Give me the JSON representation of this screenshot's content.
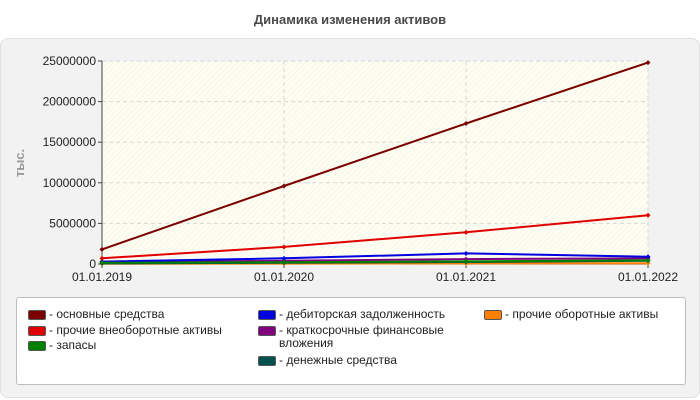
{
  "chart_data": {
    "type": "line",
    "title": "Динамика изменения активов",
    "ylabel": "тыс.",
    "xlabel": "",
    "categories": [
      "01.01.2019",
      "01.01.2020",
      "01.01.2021",
      "01.01.2022"
    ],
    "ylim": [
      0,
      25000000
    ],
    "yticks": [
      "0",
      "5000000",
      "10000000",
      "15000000",
      "20000000",
      "25000000"
    ],
    "grid": true,
    "legend_position": "bottom",
    "series": [
      {
        "name": "- основные средства",
        "color": "#7a0000",
        "values": [
          1800000,
          9600000,
          17300000,
          24800000
        ]
      },
      {
        "name": "- прочие внеоборотные активы",
        "color": "#e00000",
        "values": [
          700000,
          2100000,
          3900000,
          6000000
        ]
      },
      {
        "name": "- запасы",
        "color": "#008000",
        "values": [
          150000,
          220000,
          320000,
          450000
        ]
      },
      {
        "name": "- дебиторская задолженность",
        "color": "#0000e0",
        "values": [
          300000,
          700000,
          1300000,
          900000
        ]
      },
      {
        "name": "- краткосрочные финансовые вложения",
        "color": "#800080",
        "values": [
          200000,
          400000,
          600000,
          700000
        ]
      },
      {
        "name": "- денежные средства",
        "color": "#005050",
        "values": [
          80000,
          150000,
          250000,
          400000
        ]
      },
      {
        "name": "- прочие оборотные активы",
        "color": "#ff8000",
        "values": [
          30000,
          50000,
          70000,
          90000
        ]
      }
    ]
  }
}
